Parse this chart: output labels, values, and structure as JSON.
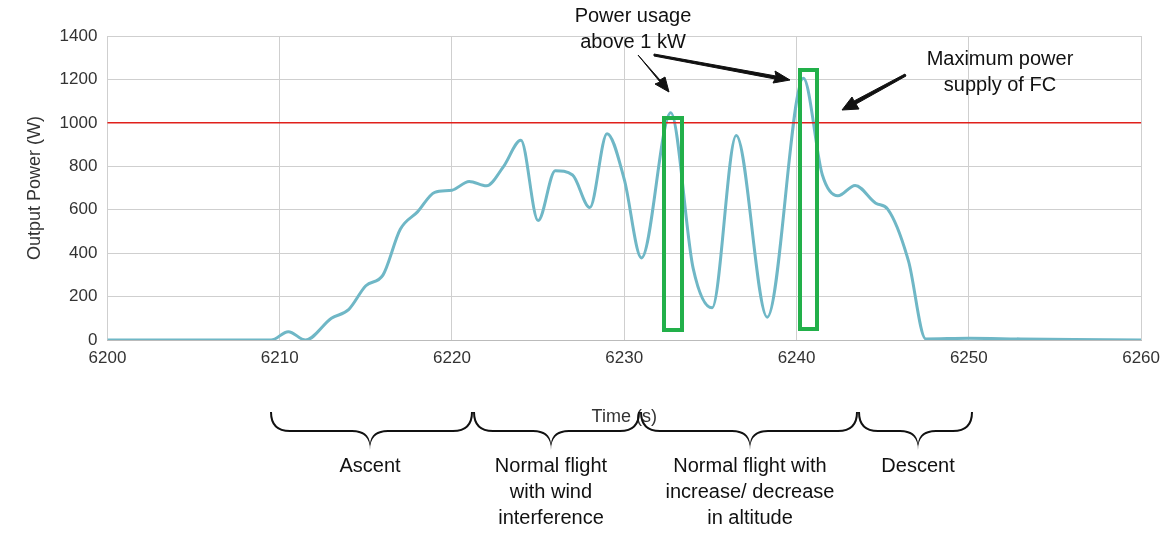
{
  "chart_data": {
    "type": "line",
    "xlabel": "Time (s)",
    "ylabel": "Output Power (W)",
    "series": [
      {
        "color": "#6fb7c6",
        "x": [
          6200,
          6209.5,
          6210.5,
          6211.5,
          6213,
          6214,
          6215,
          6216,
          6217,
          6218,
          6219,
          6220,
          6221,
          6222,
          6223,
          6224,
          6225,
          6226,
          6227,
          6228,
          6229,
          6230,
          6231,
          6232.7,
          6234,
          6235.1,
          6236.5,
          6238.3,
          6240.4,
          6241.5,
          6242.4,
          6243.4,
          6244.6,
          6245.3,
          6246.5,
          6247.5,
          6250,
          6253,
          6260
        ],
        "values": [
          0,
          0,
          38,
          0,
          100,
          140,
          250,
          300,
          510,
          590,
          680,
          690,
          730,
          710,
          800,
          920,
          550,
          780,
          760,
          610,
          950,
          740,
          378,
          1047,
          330,
          148,
          942,
          105,
          1205,
          760,
          664,
          712,
          630,
          602,
          363,
          5,
          8,
          5,
          0
        ]
      }
    ],
    "xlim": [
      6200,
      6260
    ],
    "xticks": [
      6200,
      6210,
      6220,
      6230,
      6240,
      6250,
      6260
    ],
    "ylim": [
      0,
      1400
    ],
    "yticks": [
      0,
      200,
      400,
      600,
      800,
      1000,
      1200,
      1400
    ],
    "grid": true,
    "legend": false,
    "marker": "none",
    "line_style": "solid",
    "ref_lines": [
      {
        "axis": "y",
        "value": 1000,
        "label": "Maximum power supply of FC",
        "color": "#e0201b"
      }
    ],
    "annotations": [
      "Power usage above 1 kW",
      "Ascent",
      "Normal flight with wind interference",
      "Normal flight with increase/ decrease in altitude",
      "Descent"
    ]
  }
}
